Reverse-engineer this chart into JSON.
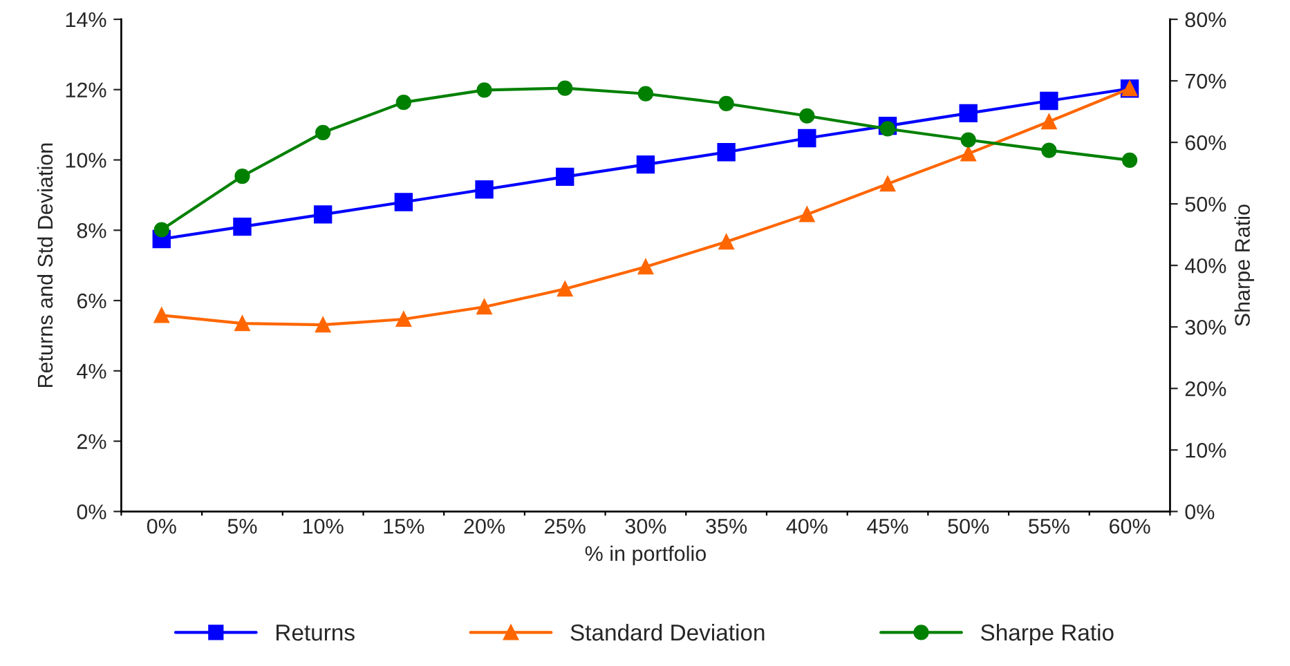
{
  "chart_data": {
    "type": "line",
    "xlabel": "% in portfolio",
    "ylabel": "Returns and Std Deviation",
    "y2label": "Sharpe Ratio",
    "categories": [
      "0%",
      "5%",
      "10%",
      "15%",
      "20%",
      "25%",
      "30%",
      "35%",
      "40%",
      "45%",
      "50%",
      "55%",
      "60%"
    ],
    "series": [
      {
        "name": "Returns",
        "color": "#0000ff",
        "marker": "square",
        "values": [
          7.75,
          8.1,
          8.45,
          8.8,
          9.16,
          9.52,
          9.87,
          10.22,
          10.62,
          10.97,
          11.33,
          11.68,
          12.03
        ]
      },
      {
        "name": "Standard Deviation",
        "color": "#ff6600",
        "marker": "triangle",
        "values": [
          5.58,
          5.35,
          5.31,
          5.47,
          5.82,
          6.33,
          6.96,
          7.67,
          8.45,
          9.32,
          10.18,
          11.09,
          12.03
        ]
      },
      {
        "name": "Sharpe Ratio",
        "color": "#008000",
        "marker": "circle",
        "axis": "y2",
        "values": [
          45.8,
          54.5,
          61.6,
          66.5,
          68.5,
          68.8,
          67.9,
          66.3,
          64.3,
          62.2,
          60.4,
          58.7,
          57.1
        ]
      }
    ],
    "ylim": [
      0,
      14
    ],
    "yticks": [
      {
        "value": 0,
        "label": "0%"
      },
      {
        "value": 2,
        "label": "2%"
      },
      {
        "value": 4,
        "label": "4%"
      },
      {
        "value": 6,
        "label": "6%"
      },
      {
        "value": 8,
        "label": "8%"
      },
      {
        "value": 10,
        "label": "10%"
      },
      {
        "value": 12,
        "label": "12%"
      },
      {
        "value": 14,
        "label": "14%"
      }
    ],
    "y2lim": [
      0,
      80
    ],
    "y2ticks": [
      {
        "value": 0,
        "label": "0%"
      },
      {
        "value": 10,
        "label": "10%"
      },
      {
        "value": 20,
        "label": "20%"
      },
      {
        "value": 30,
        "label": "30%"
      },
      {
        "value": 40,
        "label": "40%"
      },
      {
        "value": 50,
        "label": "50%"
      },
      {
        "value": 60,
        "label": "60%"
      },
      {
        "value": 70,
        "label": "70%"
      },
      {
        "value": 80,
        "label": "80%"
      }
    ],
    "legend": "bottom",
    "grid": false,
    "line_style": "solid"
  }
}
